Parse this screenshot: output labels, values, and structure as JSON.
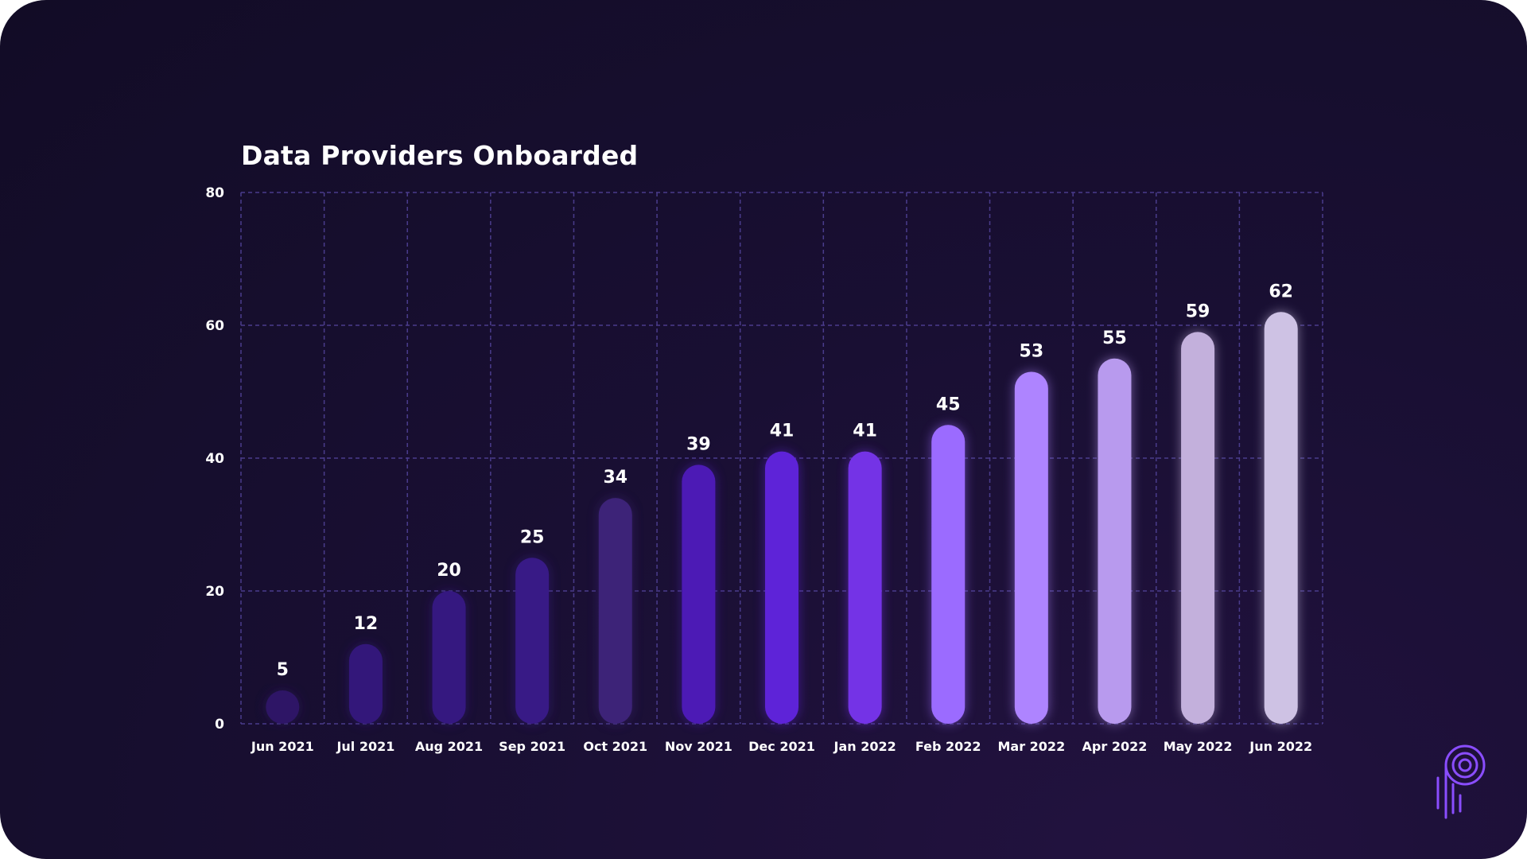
{
  "chart_data": {
    "type": "bar",
    "title": "Data Providers Onboarded",
    "xlabel": "",
    "ylabel": "",
    "categories": [
      "Jun 2021",
      "Jul 2021",
      "Aug 2021",
      "Sep 2021",
      "Oct 2021",
      "Nov 2021",
      "Dec 2021",
      "Jan 2022",
      "Feb 2022",
      "Mar 2022",
      "Apr 2022",
      "May 2022",
      "Jun 2022"
    ],
    "values": [
      5,
      12,
      20,
      25,
      34,
      39,
      41,
      41,
      45,
      53,
      55,
      59,
      62
    ],
    "ylim": [
      0,
      80
    ],
    "yticks": [
      0,
      20,
      40,
      60,
      80
    ],
    "grid": true,
    "data_labels": true,
    "bar_colors": [
      "#2e1566",
      "#33177a",
      "#351880",
      "#381a86",
      "#3d2378",
      "#4c1ab5",
      "#5e23d8",
      "#7433e6",
      "#9b6bff",
      "#ae84ff",
      "#b89aee",
      "#c3b0dc",
      "#cec2e4"
    ]
  },
  "theme": {
    "grid_color": "#4a3c8c",
    "text_color": "#ffffff",
    "logo_color": "#8a4dff"
  },
  "logo": {
    "icon": "pyth-logo-icon"
  }
}
